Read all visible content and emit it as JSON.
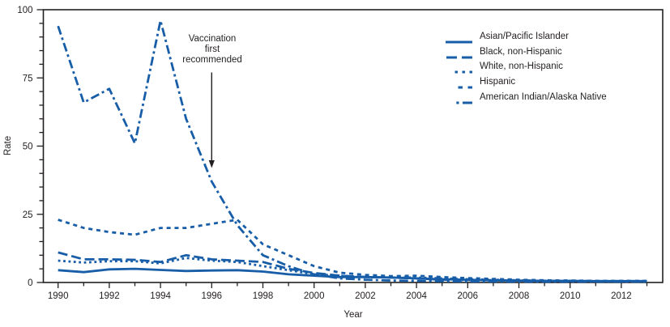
{
  "chart_data": {
    "type": "line",
    "title": "",
    "xlabel": "Year",
    "ylabel": "Rate",
    "grid": false,
    "legend_position": "top-right",
    "line_color": "#175DA8",
    "axis_color": "#231F20",
    "xlim": [
      1989.4,
      2013.4
    ],
    "ylim": [
      0,
      100
    ],
    "x_major_ticks": [
      1990,
      1992,
      1994,
      1996,
      1998,
      2000,
      2002,
      2004,
      2006,
      2008,
      2010,
      2012
    ],
    "x_minor_ticks": [
      1991,
      1993,
      1995,
      1997,
      1999,
      2001,
      2003,
      2005,
      2007,
      2009,
      2011,
      2013
    ],
    "y_major_ticks": [
      0,
      25,
      50,
      75,
      100
    ],
    "y_minor_step": 5,
    "x": [
      1990,
      1991,
      1992,
      1993,
      1994,
      1995,
      1996,
      1997,
      1998,
      1999,
      2000,
      2001,
      2002,
      2003,
      2004,
      2005,
      2006,
      2007,
      2008,
      2009,
      2010,
      2011,
      2012,
      2013
    ],
    "series": [
      {
        "name": "Asian/Pacific Islander",
        "key": "asian-pacific-islander",
        "dash": "solid",
        "values": [
          4.5,
          3.8,
          4.8,
          5,
          4.6,
          4.2,
          4.4,
          4.5,
          4,
          3,
          2.5,
          2,
          2,
          1.8,
          1.5,
          1.2,
          1,
          0.8,
          0.7,
          0.6,
          0.6,
          0.5,
          0.5,
          0.5
        ]
      },
      {
        "name": "Black, non-Hispanic",
        "key": "black-non-hispanic",
        "dash": "long-dash",
        "values": [
          11,
          8.5,
          8.5,
          8.3,
          7.5,
          10,
          8.5,
          8,
          7.5,
          5,
          3.5,
          2.5,
          2,
          1.8,
          1.5,
          1,
          0.9,
          0.8,
          0.7,
          0.6,
          0.5,
          0.4,
          0.4,
          0.4
        ]
      },
      {
        "name": "White, non-Hispanic",
        "key": "white-non-hispanic",
        "dash": "dot",
        "values": [
          8,
          7.3,
          7.8,
          7.8,
          7,
          9,
          8,
          7.5,
          6,
          4.5,
          3,
          2.5,
          2,
          1.8,
          1.8,
          1.5,
          1.2,
          1,
          0.8,
          0.6,
          0.6,
          0.5,
          0.5,
          0.5
        ]
      },
      {
        "name": "Hispanic",
        "key": "hispanic",
        "dash": "short-dash",
        "values": [
          23,
          20,
          18.5,
          17.5,
          20,
          20,
          21.5,
          23,
          14,
          10,
          6,
          3.6,
          2.8,
          2.3,
          2.5,
          2,
          1.6,
          1.3,
          1,
          0.8,
          0.7,
          0.6,
          0.6,
          0.6
        ]
      },
      {
        "name": "American Indian/Alaska Native",
        "key": "american-indian-alaska-native",
        "dash": "dash-dot",
        "values": [
          94,
          66,
          71,
          51,
          96,
          60,
          37,
          21,
          10,
          6,
          3,
          1.5,
          1,
          0.7,
          0.6,
          0.5,
          0.4,
          0.4,
          0.3,
          0.3,
          0.3,
          0.3,
          0.3,
          0.3
        ]
      }
    ],
    "annotation": {
      "lines": [
        "Vaccination",
        "first",
        "recommended"
      ],
      "x": 1996,
      "arrow_from_rate": 77,
      "arrow_to_rate": 42
    }
  }
}
